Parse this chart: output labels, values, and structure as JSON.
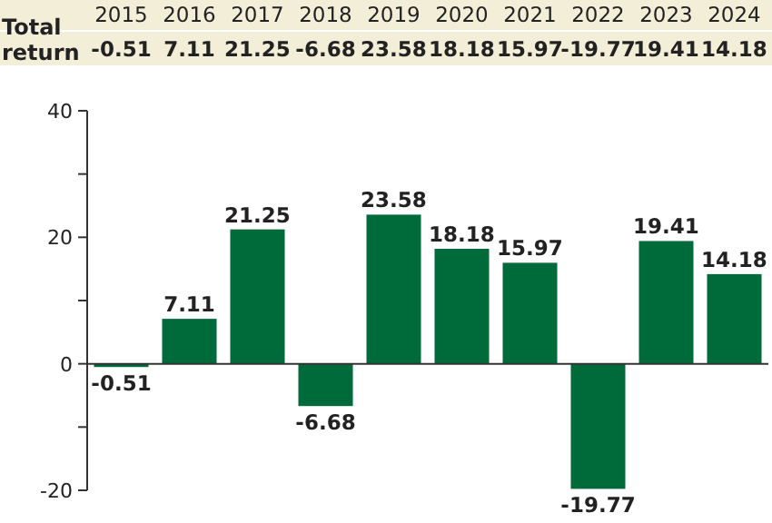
{
  "chart_data": {
    "type": "bar",
    "categories": [
      "2015",
      "2016",
      "2017",
      "2018",
      "2019",
      "2020",
      "2021",
      "2022",
      "2023",
      "2024"
    ],
    "values": [
      -0.51,
      7.11,
      21.25,
      -6.68,
      23.58,
      18.18,
      15.97,
      -19.77,
      19.41,
      14.18
    ],
    "color": "#006b3a",
    "annotations": [
      "Total return",
      "-0.51",
      "7.11",
      "21.25",
      "-6.68",
      "23.58",
      "18.18",
      "15.97",
      "-19.77",
      "19.41",
      "14.18"
    ],
    "ylim": [
      -20,
      40
    ],
    "yticks": [
      -20,
      {
        "value": -10,
        "label": null
      },
      0,
      {
        "value": 10,
        "label": null
      },
      20,
      {
        "value": 30,
        "label": null
      },
      40
    ],
    "data_labels": true
  }
}
